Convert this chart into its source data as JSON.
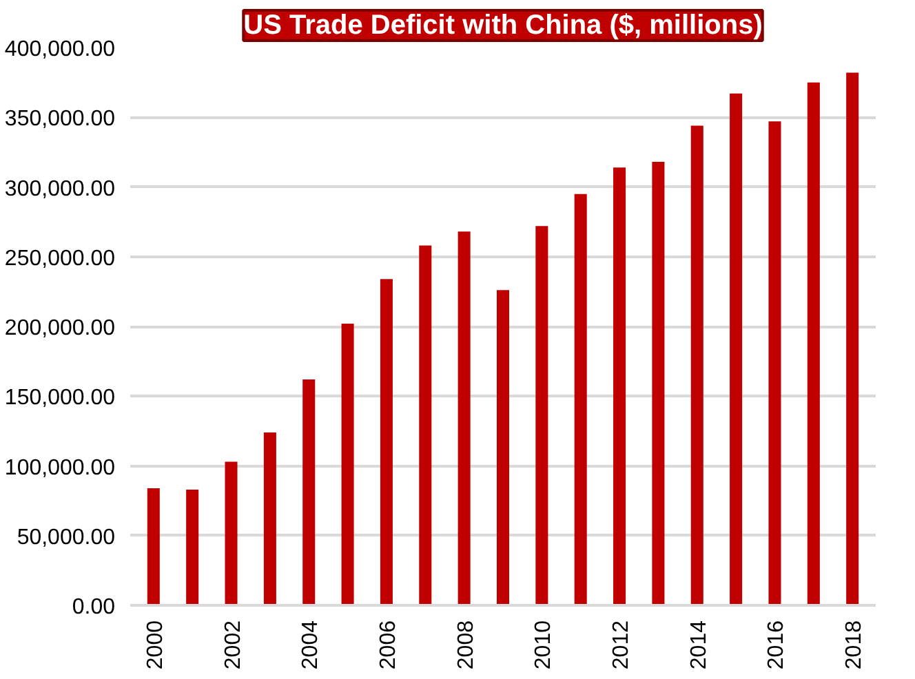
{
  "chart_data": {
    "type": "bar",
    "title": "US Trade Deficit with China ($, millions)",
    "categories": [
      "2000",
      null,
      "2002",
      null,
      "2004",
      null,
      "2006",
      null,
      "2008",
      null,
      "2010",
      null,
      "2012",
      null,
      "2014",
      null,
      "2016",
      null,
      "2018"
    ],
    "values": [
      84000,
      83000,
      103000,
      124000,
      162000,
      202000,
      234000,
      258000,
      268000,
      226000,
      272000,
      295000,
      314000,
      318000,
      344000,
      367000,
      347000,
      375000,
      382000
    ],
    "color": "#c00000",
    "ylim": [
      0,
      400000
    ],
    "yticks": [
      {
        "value": 0,
        "label": "0.00"
      },
      {
        "value": 50000,
        "label": "50,000.00"
      },
      {
        "value": 100000,
        "label": "100,000.00"
      },
      {
        "value": 150000,
        "label": "150,000.00"
      },
      {
        "value": 200000,
        "label": "200,000.00"
      },
      {
        "value": 250000,
        "label": "250,000.00"
      },
      {
        "value": 300000,
        "label": "300,000.00"
      },
      {
        "value": 350000,
        "label": "350,000.00"
      },
      {
        "value": 400000,
        "label": "400,000.00"
      }
    ],
    "grid": "y"
  }
}
